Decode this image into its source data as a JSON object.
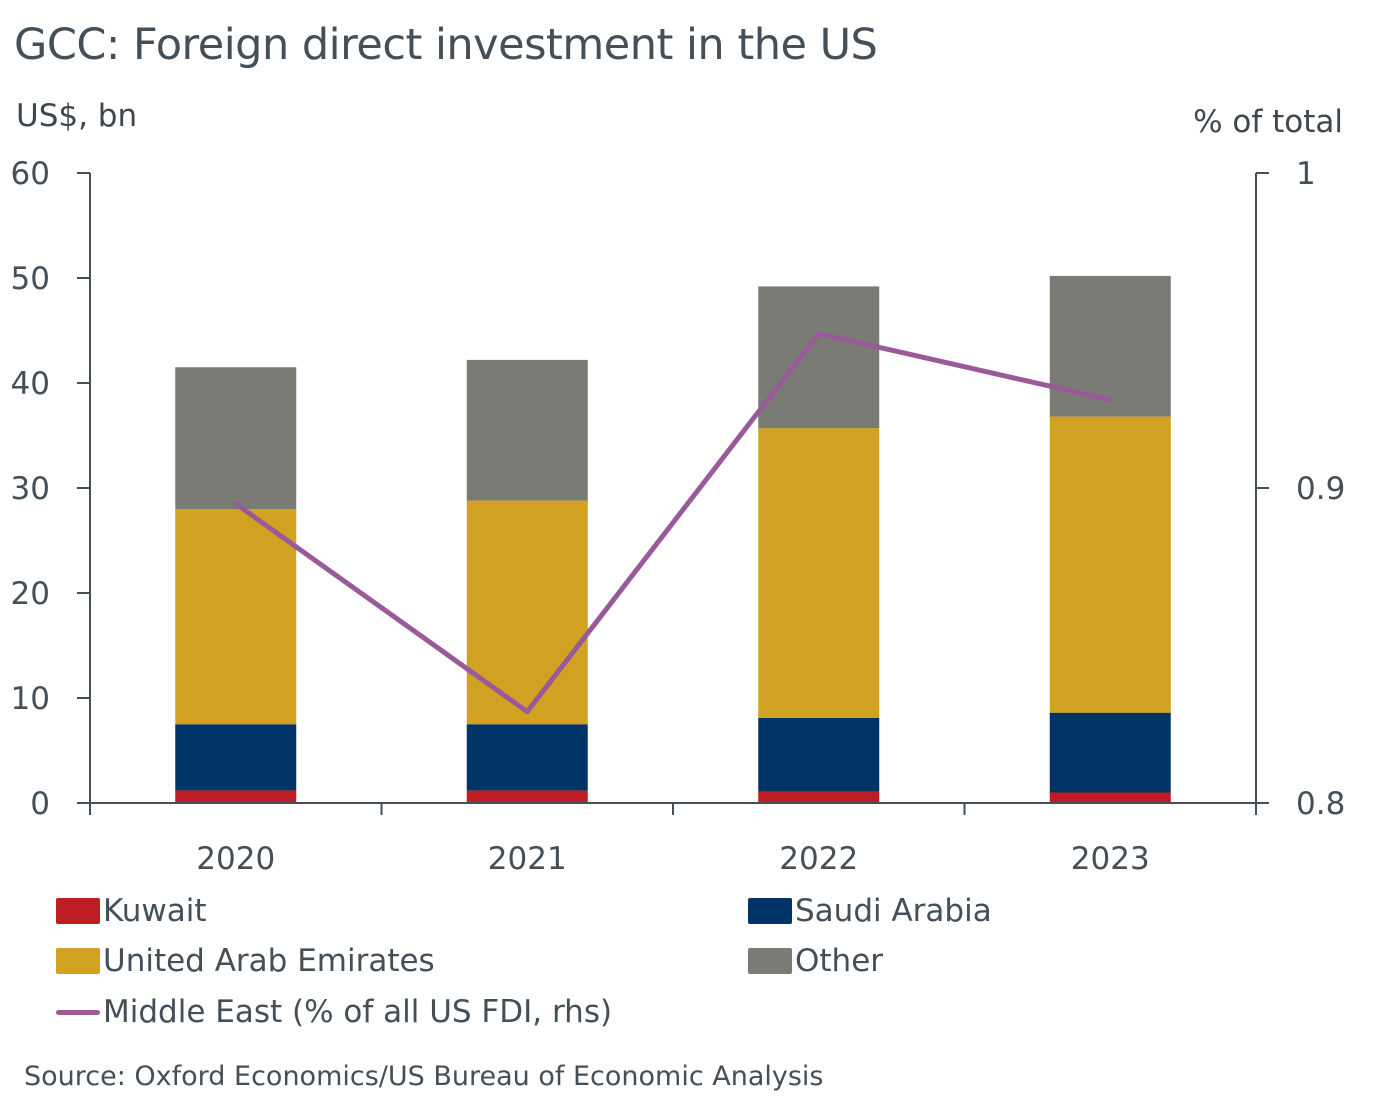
{
  "chart_data": {
    "type": "bar",
    "stacked": true,
    "title": "GCC: Foreign direct investment in the US",
    "ylabel_left": "US$, bn",
    "ylabel_right": "% of total",
    "xlabel": "",
    "categories": [
      "2020",
      "2021",
      "2022",
      "2023"
    ],
    "ylim_left": [
      0,
      60
    ],
    "yticks_left": [
      0,
      10,
      20,
      30,
      40,
      50,
      60
    ],
    "ylim_right": [
      0.8,
      1.0
    ],
    "yticks_right": [
      0.8,
      0.9,
      1.0
    ],
    "ytick_labels_right": [
      "0.8",
      "0.9",
      "1"
    ],
    "grid": false,
    "series": [
      {
        "name": "Kuwait",
        "kind": "bar",
        "axis": "left",
        "color": "#C01C23",
        "values": [
          1.2,
          1.2,
          1.1,
          1.0
        ]
      },
      {
        "name": "Saudi Arabia",
        "kind": "bar",
        "axis": "left",
        "color": "#003366",
        "values": [
          6.3,
          6.3,
          7.0,
          7.6
        ]
      },
      {
        "name": "United Arab Emirates",
        "kind": "bar",
        "axis": "left",
        "color": "#D1A121",
        "values": [
          20.5,
          21.3,
          27.6,
          28.2
        ]
      },
      {
        "name": "Other",
        "kind": "bar",
        "axis": "left",
        "color": "#7B7B75",
        "values": [
          13.5,
          13.4,
          13.5,
          13.4
        ]
      },
      {
        "name": "Middle East (% of all US FDI, rhs)",
        "kind": "line",
        "axis": "right",
        "color": "#985A99",
        "values": [
          0.895,
          0.829,
          0.949,
          0.928
        ]
      }
    ],
    "legend_position": "bottom",
    "source": "Source: Oxford Economics/US Bureau of Economic Analysis"
  },
  "legend": [
    {
      "label": "Kuwait",
      "color": "#C01C23",
      "kind": "box"
    },
    {
      "label": "Saudi Arabia",
      "color": "#003366",
      "kind": "box"
    },
    {
      "label": "United Arab Emirates",
      "color": "#D1A121",
      "kind": "box"
    },
    {
      "label": "Other",
      "color": "#7B7B75",
      "kind": "box"
    },
    {
      "label": "Middle East (% of all US FDI, rhs)",
      "color": "#985A99",
      "kind": "line"
    }
  ],
  "colors": {
    "axis": "#454F57",
    "text": "#454F57"
  }
}
